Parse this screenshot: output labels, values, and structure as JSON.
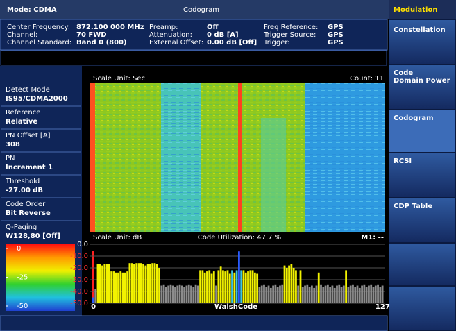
{
  "header": {
    "mode": "Mode: CDMA",
    "title": "Codogram"
  },
  "info": {
    "rows": [
      [
        "Center Frequency:",
        "872.100 000 MHz",
        "Preamp:",
        "Off",
        "Freq Reference:",
        "GPS"
      ],
      [
        "Channel:",
        "70 FWD",
        "Attenuation:",
        "0 dB  [A]",
        "Trigger Source:",
        "GPS"
      ],
      [
        "Channel Standard:",
        "Band 0 (800)",
        "External Offset:",
        "0.00 dB  [Off]",
        "Trigger:",
        "GPS"
      ]
    ]
  },
  "softkeys": [
    [
      "Modulation"
    ],
    [
      "Constellation"
    ],
    [
      "Code",
      "Domain Power"
    ],
    [
      "Codogram"
    ],
    [
      "RCSI"
    ],
    [
      "CDP Table"
    ]
  ],
  "params": [
    {
      "label": "Detect Mode",
      "value": "IS95/CDMA2000"
    },
    {
      "label": "Reference",
      "value": "Relative"
    },
    {
      "label": "PN Offset [A]",
      "value": "308"
    },
    {
      "label": "PN",
      "value": "Increment 1"
    },
    {
      "label": "Threshold",
      "value": "-27.00 dB"
    },
    {
      "label": "Code Order",
      "value": "Bit Reverse"
    },
    {
      "label": "Q-Paging",
      "value": "W128,80 [Off]"
    }
  ],
  "colorbar": {
    "ticks": [
      0,
      -25,
      -50
    ],
    "lim": [
      -50,
      0
    ]
  },
  "codogram": {
    "scale_unit": "Scale Unit: Sec",
    "count": "Count: 11"
  },
  "chart_data": {
    "type": "bar",
    "scale_unit": "Scale Unit: dB",
    "utilization": "Code Utilization: 47.7 %",
    "marker": "M1: --",
    "xlabel": "WalshCode",
    "xlim": [
      0,
      127
    ],
    "xticks": [
      0,
      127
    ],
    "ylim": [
      -50,
      0
    ],
    "yticks": [
      {
        "value": 0,
        "label": "0.0"
      },
      {
        "value": -10,
        "label": "-10.0"
      },
      {
        "value": -20,
        "label": "-20.0"
      },
      {
        "value": -30,
        "label": "-30.0"
      },
      {
        "value": -40,
        "label": "-40.0"
      },
      {
        "value": -50,
        "label": "-50.0"
      }
    ],
    "grid": true,
    "palette": [
      "#8c8c8c",
      "#f2f200",
      "#2a5cff",
      "#3cc4e6"
    ],
    "values": [
      -45,
      -38,
      -17,
      -17,
      -18,
      -17,
      -17,
      -17,
      -23,
      -23,
      -24,
      -24,
      -23,
      -24,
      -24,
      -23,
      -16,
      -16,
      -17,
      -16,
      -16,
      -16,
      -17,
      -18,
      -17,
      -17,
      -16,
      -16,
      -17,
      -20,
      -35,
      -34,
      -36,
      -35,
      -34,
      -35,
      -36,
      -35,
      -34,
      -35,
      -36,
      -35,
      -34,
      -35,
      -36,
      -34,
      -35,
      -22,
      -22,
      -24,
      -23,
      -22,
      -25,
      -23,
      -35,
      -22,
      -19,
      -22,
      -23,
      -22,
      -25,
      -22,
      -24,
      -22,
      -6,
      -22,
      -22,
      -24,
      -23,
      -22,
      -22,
      -24,
      -25,
      -36,
      -35,
      -34,
      -36,
      -35,
      -37,
      -35,
      -34,
      -36,
      -35,
      -34,
      -18,
      -20,
      -18,
      -17,
      -20,
      -22,
      -35,
      -22,
      -36,
      -35,
      -34,
      -36,
      -35,
      -37,
      -35,
      -24,
      -34,
      -36,
      -35,
      -34,
      -36,
      -35,
      -37,
      -35,
      -34,
      -36,
      -35,
      -22,
      -36,
      -35,
      -34,
      -36,
      -35,
      -37,
      -35,
      -34,
      -36,
      -35,
      -34,
      -36,
      -35,
      -34,
      -36,
      -35
    ],
    "color_index": [
      2,
      0,
      1,
      1,
      1,
      1,
      1,
      1,
      1,
      1,
      1,
      1,
      1,
      1,
      1,
      1,
      1,
      1,
      1,
      1,
      1,
      1,
      1,
      1,
      1,
      1,
      1,
      1,
      1,
      1,
      0,
      0,
      0,
      0,
      0,
      0,
      0,
      0,
      0,
      0,
      0,
      0,
      0,
      0,
      0,
      0,
      0,
      1,
      1,
      1,
      1,
      1,
      1,
      1,
      0,
      1,
      1,
      1,
      1,
      1,
      1,
      3,
      1,
      3,
      2,
      3,
      1,
      1,
      1,
      1,
      1,
      1,
      1,
      0,
      0,
      0,
      0,
      0,
      0,
      0,
      0,
      0,
      0,
      0,
      1,
      1,
      1,
      1,
      1,
      1,
      0,
      1,
      0,
      0,
      0,
      0,
      0,
      0,
      0,
      1,
      0,
      0,
      0,
      0,
      0,
      0,
      0,
      0,
      0,
      0,
      0,
      1,
      0,
      0,
      0,
      0,
      0,
      0,
      0,
      0,
      0,
      0,
      0,
      0,
      0,
      0,
      0,
      0
    ]
  }
}
